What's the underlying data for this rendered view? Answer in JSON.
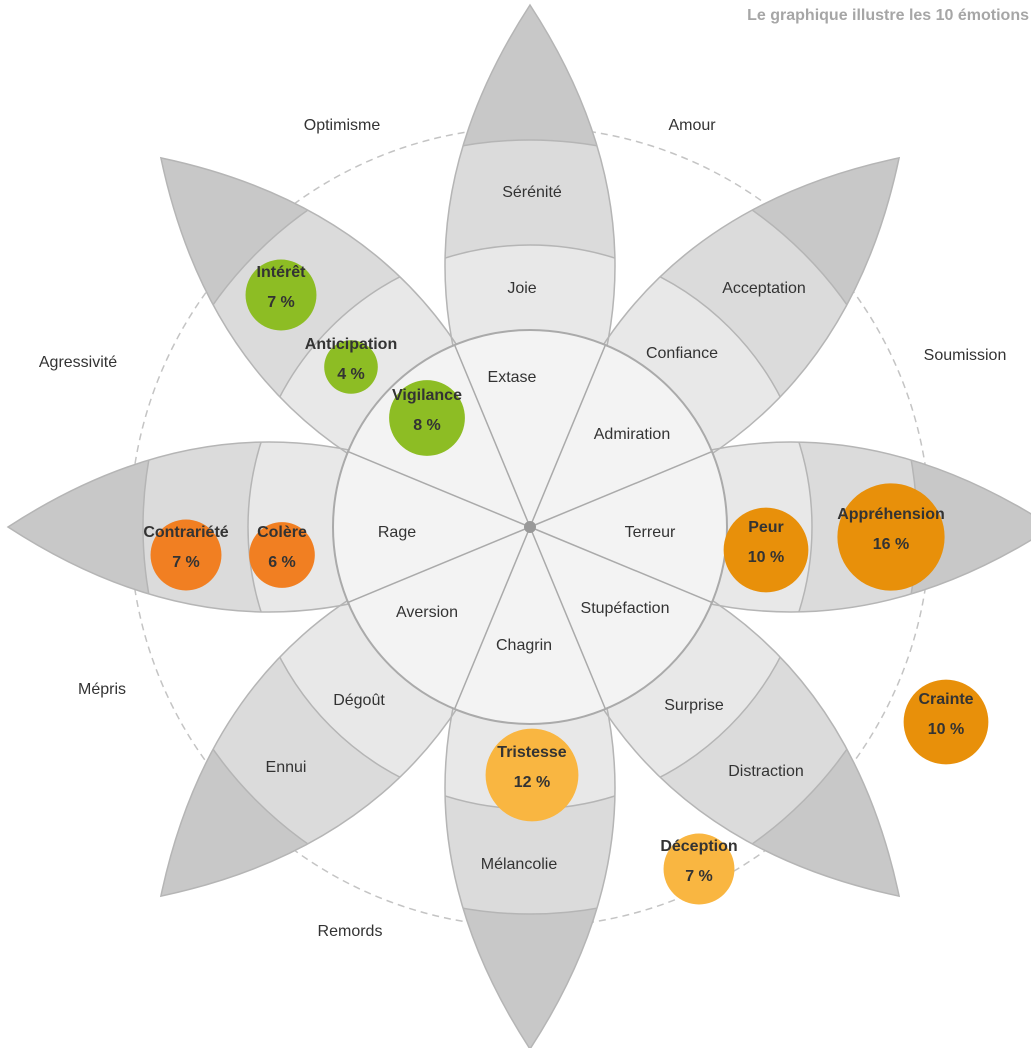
{
  "title": "Le graphique illustre les 10 émotions",
  "inner_emotions": [
    "Extase",
    "Admiration",
    "Terreur",
    "Stupéfaction",
    "Chagrin",
    "Aversion",
    "Rage"
  ],
  "middle_labels": [
    "Joie",
    "Confiance",
    "Surprise",
    "Dégoût"
  ],
  "outer_labels": [
    "Sérénité",
    "Acceptation",
    "Distraction",
    "Mélancolie",
    "Ennui"
  ],
  "dyads": [
    "Optimisme",
    "Amour",
    "Soumission",
    "Mépris",
    "Remords",
    "Agressivité"
  ],
  "bubbles": [
    {
      "name": "Intérêt",
      "value": 7,
      "value_label": "7 %",
      "color": "#8dbd24"
    },
    {
      "name": "Anticipation",
      "value": 4,
      "value_label": "4 %",
      "color": "#8dbd24"
    },
    {
      "name": "Vigilance",
      "value": 8,
      "value_label": "8 %",
      "color": "#8dbd24"
    },
    {
      "name": "Contrariété",
      "value": 7,
      "value_label": "7 %",
      "color": "#f17f22"
    },
    {
      "name": "Colère",
      "value": 6,
      "value_label": "6 %",
      "color": "#f17f22"
    },
    {
      "name": "Peur",
      "value": 10,
      "value_label": "10 %",
      "color": "#e8900a"
    },
    {
      "name": "Appréhension",
      "value": 16,
      "value_label": "16 %",
      "color": "#e8900a"
    },
    {
      "name": "Crainte",
      "value": 10,
      "value_label": "10 %",
      "color": "#e8900a"
    },
    {
      "name": "Tristesse",
      "value": 12,
      "value_label": "12 %",
      "color": "#f9b641"
    },
    {
      "name": "Déception",
      "value": 7,
      "value_label": "7 %",
      "color": "#f9b641"
    }
  ]
}
